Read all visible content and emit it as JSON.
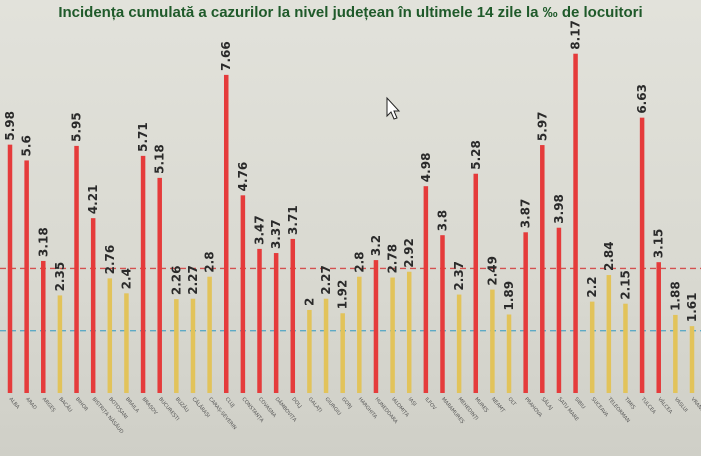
{
  "chart_data": {
    "type": "bar",
    "title": "Incidența cumulată a cazurilor la nivel județean în ultimele 14 zile la ‰ de locuitori",
    "categories": [
      "ALBA",
      "ARAD",
      "ARGEȘ",
      "BACĂU",
      "BIHOR",
      "BISTRIȚA NĂSĂUD",
      "BOTOȘANI",
      "BRAILA",
      "BRAȘOV",
      "BUCUREȘTI",
      "BUZĂU",
      "CĂLĂRAȘI",
      "CARAȘ-SEVERIN",
      "CLUJ",
      "CONSTANȚA",
      "COVASNA",
      "DÂMBOVIȚA",
      "DOLJ",
      "GALAȚI",
      "GIURGIU",
      "GORJ",
      "HARGHITA",
      "HUNEDOARA",
      "IALOMIȚA",
      "IAȘI",
      "ILFOV",
      "MARAMUREȘ",
      "MEHEDINȚI",
      "MUREȘ",
      "NEAMȚ",
      "OLT",
      "PRAHOVA",
      "SĂLAJ",
      "SATU MARE",
      "SIBIU",
      "SUCEAVA",
      "TELEORMAN",
      "TIMIȘ",
      "TULCEA",
      "VÂLCEA",
      "VASLUI",
      "VRANCEA"
    ],
    "values": [
      5.98,
      5.6,
      3.18,
      2.35,
      5.95,
      4.21,
      2.76,
      2.4,
      5.71,
      5.18,
      2.26,
      2.27,
      2.8,
      7.66,
      4.76,
      3.47,
      3.37,
      3.71,
      2,
      2.27,
      1.92,
      2.8,
      3.2,
      2.78,
      2.92,
      4.98,
      3.8,
      2.37,
      5.28,
      2.49,
      1.89,
      3.87,
      5.97,
      3.98,
      8.17,
      2.2,
      2.84,
      2.15,
      6.63,
      3.15,
      1.88,
      1.61
    ],
    "value_labels": [
      "5.98",
      "5.6",
      "3.18",
      "2.35",
      "5.95",
      "4.21",
      "2.76",
      "2.4",
      "5.71",
      "5.18",
      "2.26",
      "2.27",
      "2.8",
      "7.66",
      "4.76",
      "3.47",
      "3.37",
      "3.71",
      "2",
      "2.27",
      "1.92",
      "2.8",
      "3.2",
      "2.78",
      "2.92",
      "4.98",
      "3.8",
      "2.37",
      "5.28",
      "2.49",
      "1.89",
      "3.87",
      "5.97",
      "3.98",
      "8.17",
      "2.2",
      "2.84",
      "2.15",
      "6.63",
      "3.15",
      "1.88",
      "1.61"
    ],
    "thresholds": [
      {
        "value": 3,
        "color": "#d43a3a",
        "style": "dashed"
      },
      {
        "value": 1.5,
        "color": "#4aa3c4",
        "style": "dashed"
      }
    ],
    "ylim": [
      0,
      8.5
    ],
    "colors": {
      "above_threshold": "#e53b3b",
      "below_threshold": "#e2c35a"
    },
    "grid": false,
    "legend": "none"
  }
}
